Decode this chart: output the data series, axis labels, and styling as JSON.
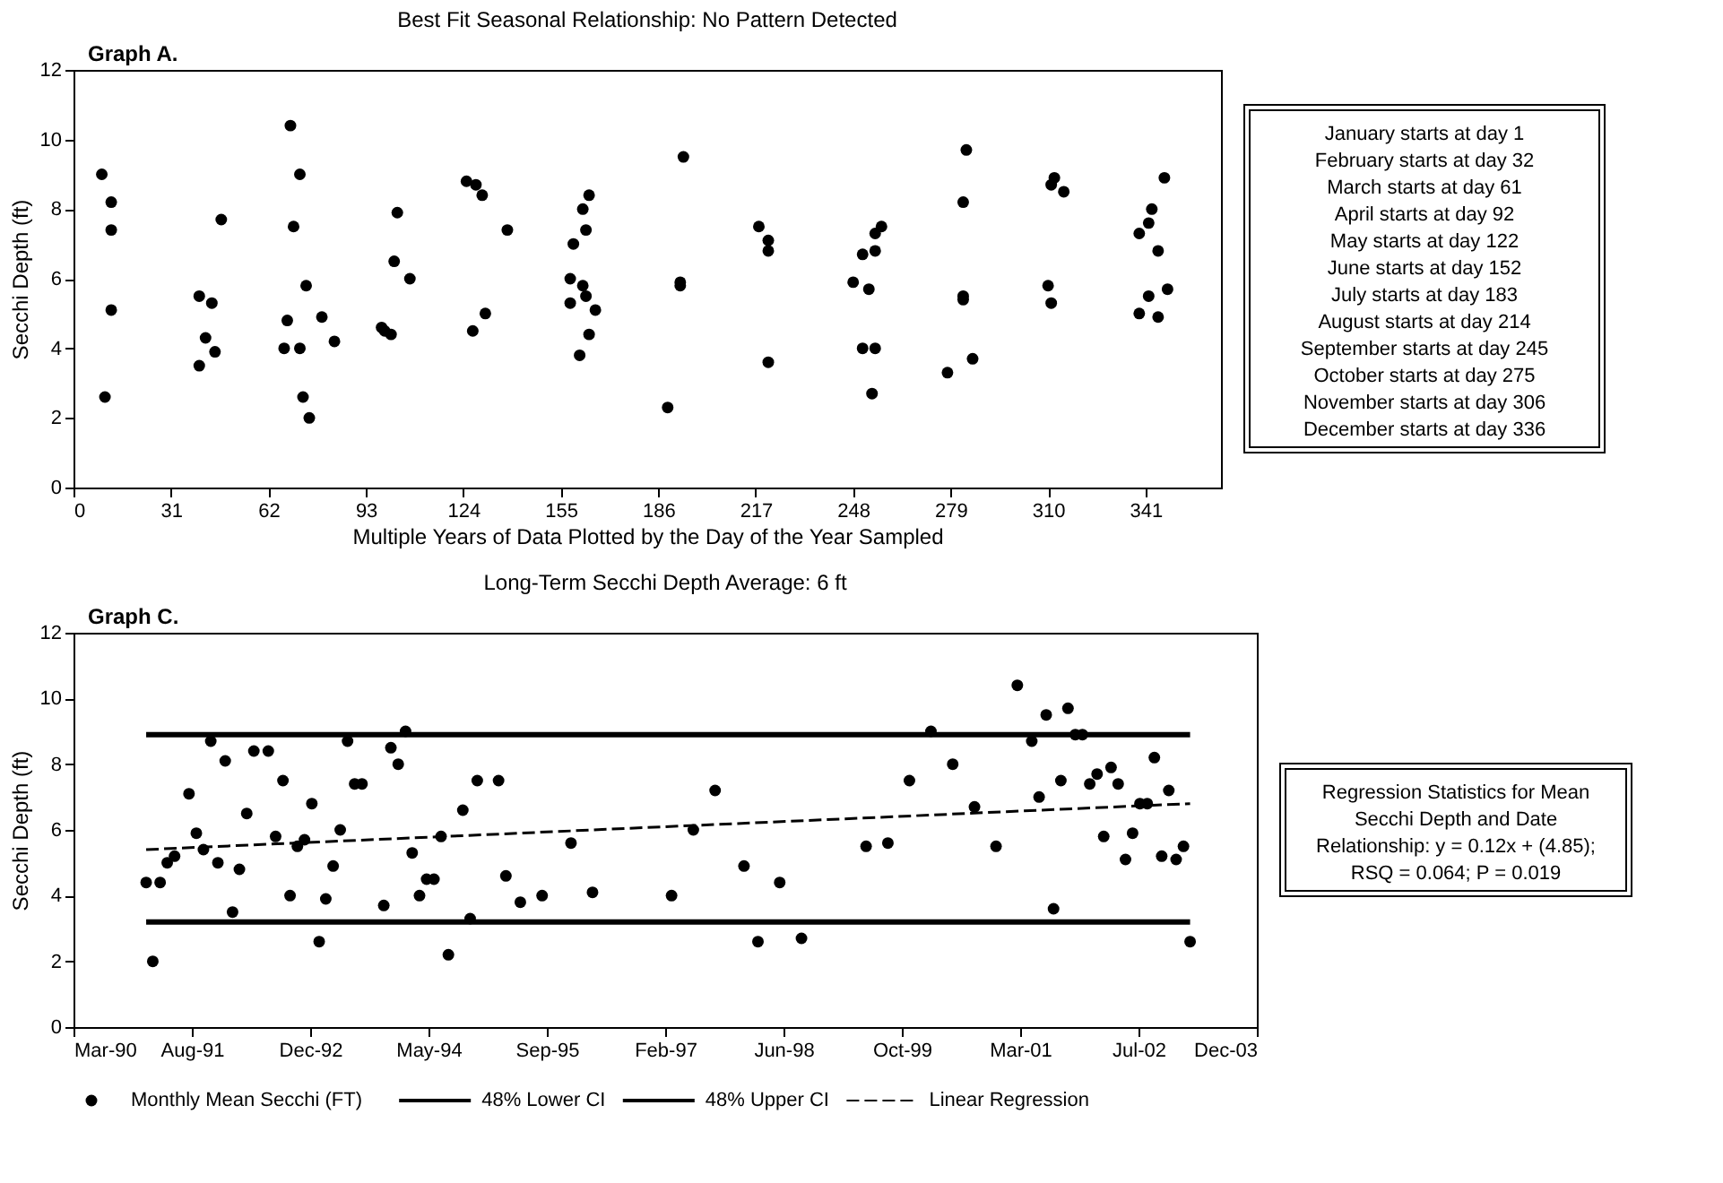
{
  "chart_data": [
    {
      "type": "scatter",
      "title": "Best Fit Seasonal Relationship: No Pattern Detected",
      "xlabel": "Multiple Years of Data Plotted by the Day of the Year Sampled",
      "ylabel": "Secchi Depth (ft)",
      "annotations": [
        "Graph A.",
        "January starts at day 1",
        "February starts at day 32",
        "March starts at day 61",
        "April starts at day 92",
        "May starts at day 122",
        "June starts at day 152",
        "July starts at day 183",
        "August starts at day 214",
        "September starts at day 245",
        "October starts at day 275",
        "November starts at day 306",
        "December starts at day 336"
      ],
      "xlim": [
        0,
        365
      ],
      "xticks": [
        0,
        31,
        62,
        93,
        124,
        155,
        186,
        217,
        248,
        279,
        310,
        341
      ],
      "ylim": [
        0,
        12
      ],
      "yticks": [
        0,
        2,
        4,
        6,
        8,
        10,
        12
      ],
      "grid": false,
      "legend": false,
      "marker": "circle",
      "series": [
        {
          "color": "#000000",
          "x": [
            9,
            12,
            12,
            12,
            10,
            40,
            44,
            42,
            45,
            40,
            47,
            69,
            72,
            70,
            74,
            68,
            67,
            72,
            73,
            75,
            79,
            83,
            98,
            99,
            101,
            103,
            102,
            107,
            125,
            128,
            130,
            138,
            127,
            131,
            158,
            159,
            162,
            164,
            163,
            162,
            163,
            158,
            166,
            164,
            161,
            189,
            193,
            193,
            194,
            218,
            221,
            221,
            221,
            248,
            253,
            251,
            255,
            255,
            257,
            251,
            255,
            254,
            278,
            286,
            283,
            283,
            283,
            284,
            312,
            311,
            315,
            310,
            311,
            347,
            343,
            342,
            339,
            345,
            348,
            342,
            339,
            345
          ],
          "values": [
            9.0,
            8.2,
            7.4,
            5.1,
            2.6,
            5.5,
            5.3,
            4.3,
            3.9,
            3.5,
            7.7,
            10.4,
            9.0,
            7.5,
            5.8,
            4.8,
            4.0,
            4.0,
            2.6,
            2.0,
            4.9,
            4.2,
            4.6,
            4.5,
            4.4,
            7.9,
            6.5,
            6.0,
            8.8,
            8.7,
            8.4,
            7.4,
            4.5,
            5.0,
            6.0,
            7.0,
            8.0,
            8.4,
            7.4,
            5.8,
            5.5,
            5.3,
            5.1,
            4.4,
            3.8,
            2.3,
            5.8,
            5.9,
            9.5,
            7.5,
            7.1,
            6.8,
            3.6,
            5.9,
            5.7,
            6.7,
            6.8,
            7.3,
            7.5,
            4.0,
            4.0,
            2.7,
            3.3,
            3.7,
            5.5,
            5.4,
            8.2,
            9.7,
            8.9,
            8.7,
            8.5,
            5.8,
            5.3,
            8.9,
            8.0,
            7.6,
            7.3,
            6.8,
            5.7,
            5.5,
            5.0,
            4.9
          ]
        }
      ]
    },
    {
      "type": "scatter",
      "title": "Long-Term Secchi Depth Average:  6 ft",
      "ylabel": "Secchi Depth (ft)",
      "annotations": [
        "Graph C.",
        "Regression Statistics for Mean",
        "Secchi Depth and Date",
        "Relationship:  y = 0.12x + (4.85);",
        "RSQ = 0.064; P = 0.019"
      ],
      "xlim": [
        "1990-03-31",
        "2003-12-08"
      ],
      "xticks": [
        {
          "value": "1990-03-31",
          "label": "Mar-90"
        },
        {
          "value": "1991-08-13",
          "label": "Aug-91"
        },
        {
          "value": "1992-12-25",
          "label": "Dec-92"
        },
        {
          "value": "1994-05-09",
          "label": "May-94"
        },
        {
          "value": "1995-09-21",
          "label": "Sep-95"
        },
        {
          "value": "1997-02-02",
          "label": "Feb-97"
        },
        {
          "value": "1998-06-17",
          "label": "Jun-98"
        },
        {
          "value": "1999-10-30",
          "label": "Oct-99"
        },
        {
          "value": "2001-03-13",
          "label": "Mar-01"
        },
        {
          "value": "2002-07-26",
          "label": "Jul-02"
        },
        {
          "value": "2003-12-08",
          "label": "Dec-03"
        }
      ],
      "ylim": [
        0,
        12
      ],
      "yticks": [
        0,
        2,
        4,
        6,
        8,
        10,
        12
      ],
      "grid": false,
      "legend": "bottom",
      "marker": "circle",
      "series": [
        {
          "name": "Monthly Mean Secchi (FT)",
          "type": "scatter",
          "color": "#000000",
          "x": [
            "1991-02",
            "1991-03",
            "1991-04",
            "1991-05",
            "1991-06",
            "1991-08",
            "1991-09",
            "1991-10",
            "1991-11",
            "1991-12",
            "1992-01",
            "1992-02",
            "1992-03",
            "1992-04",
            "1992-05",
            "1992-07",
            "1992-08",
            "1992-09",
            "1992-10",
            "1992-11",
            "1992-12",
            "1993-01",
            "1993-02",
            "1993-03",
            "1993-04",
            "1993-05",
            "1993-06",
            "1993-07",
            "1993-08",
            "1993-11",
            "1993-12",
            "1994-01",
            "1994-02",
            "1994-03",
            "1994-04",
            "1994-05",
            "1994-06",
            "1994-07",
            "1994-08",
            "1994-10",
            "1994-11",
            "1994-12",
            "1995-03",
            "1995-04",
            "1995-06",
            "1995-09",
            "1996-01",
            "1996-04",
            "1997-03",
            "1997-06",
            "1997-09",
            "1998-01",
            "1998-03",
            "1998-06",
            "1998-09",
            "1999-06",
            "1999-09",
            "1999-12",
            "2000-03",
            "2000-06",
            "2000-09",
            "2000-12",
            "2001-03",
            "2001-05",
            "2001-06",
            "2001-07",
            "2001-08",
            "2001-09",
            "2001-10",
            "2001-11",
            "2001-12",
            "2002-01",
            "2002-02",
            "2002-03",
            "2002-04",
            "2002-05",
            "2002-06",
            "2002-07",
            "2002-08",
            "2002-09",
            "2002-10",
            "2002-11",
            "2002-12",
            "2003-01",
            "2003-02",
            "2003-03"
          ],
          "values": [
            4.4,
            2.0,
            4.4,
            5.0,
            5.2,
            7.1,
            5.9,
            5.4,
            8.7,
            5.0,
            8.1,
            3.5,
            4.8,
            6.5,
            8.4,
            8.4,
            5.8,
            7.5,
            4.0,
            5.5,
            5.7,
            6.8,
            2.6,
            3.9,
            4.9,
            6.0,
            8.7,
            7.4,
            7.4,
            3.7,
            8.5,
            8.0,
            9.0,
            5.3,
            4.0,
            4.5,
            4.5,
            5.8,
            2.2,
            6.6,
            3.3,
            7.5,
            7.5,
            4.6,
            3.8,
            4.0,
            5.6,
            4.1,
            4.0,
            6.0,
            7.2,
            4.9,
            2.6,
            4.4,
            2.7,
            5.5,
            5.6,
            7.5,
            9.0,
            8.0,
            6.7,
            5.5,
            10.4,
            8.7,
            7.0,
            9.5,
            3.6,
            7.5,
            9.7,
            8.9,
            8.9,
            7.4,
            7.7,
            5.8,
            7.9,
            7.4,
            5.1,
            5.9,
            6.8,
            6.8,
            8.2,
            5.2,
            7.2,
            5.1,
            5.5,
            2.6
          ]
        },
        {
          "name": "48% Lower CI",
          "type": "line",
          "line_style": "solid",
          "marker": "none",
          "color": "#000000",
          "x": [
            "1991-02",
            "2003-03"
          ],
          "values": [
            3.2,
            3.2
          ]
        },
        {
          "name": "48% Upper CI",
          "type": "line",
          "line_style": "solid",
          "marker": "none",
          "color": "#000000",
          "x": [
            "1991-02",
            "2003-03"
          ],
          "values": [
            8.9,
            8.9
          ]
        },
        {
          "name": "Linear Regression",
          "type": "line",
          "line_style": "dashed",
          "marker": "none",
          "color": "#000000",
          "x": [
            "1991-02",
            "2003-03"
          ],
          "values": [
            5.4,
            6.8
          ]
        }
      ]
    }
  ]
}
